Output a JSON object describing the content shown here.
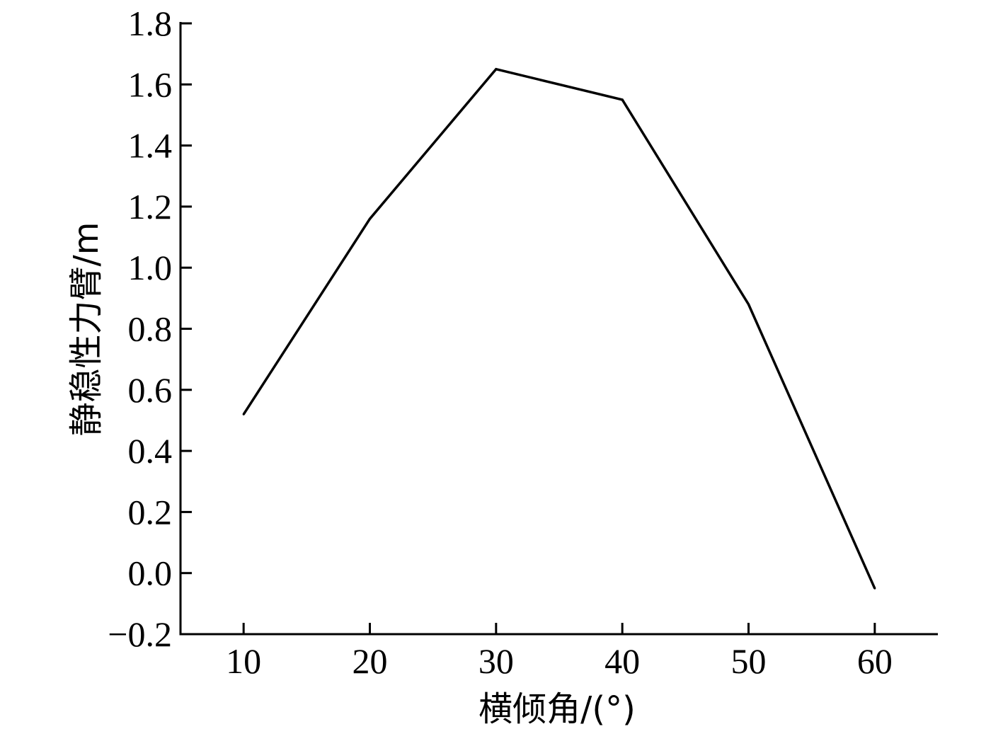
{
  "chart_data": {
    "type": "line",
    "title": "",
    "xlabel": "横倾角/(°)",
    "ylabel": "静稳性力臂/m",
    "x": [
      10,
      20,
      30,
      40,
      50,
      60
    ],
    "series": [
      {
        "name": "",
        "values": [
          0.52,
          1.16,
          1.65,
          1.55,
          0.88,
          -0.05
        ]
      }
    ],
    "xticks": [
      "10",
      "20",
      "30",
      "40",
      "50",
      "60"
    ],
    "yticks": [
      "−0.2",
      "0.0",
      "0.2",
      "0.4",
      "0.6",
      "0.8",
      "1.0",
      "1.2",
      "1.4",
      "1.6",
      "1.8"
    ],
    "xlim": [
      5,
      65
    ],
    "ylim": [
      -0.2,
      1.8
    ],
    "grid": false,
    "line_color": "#000000"
  }
}
